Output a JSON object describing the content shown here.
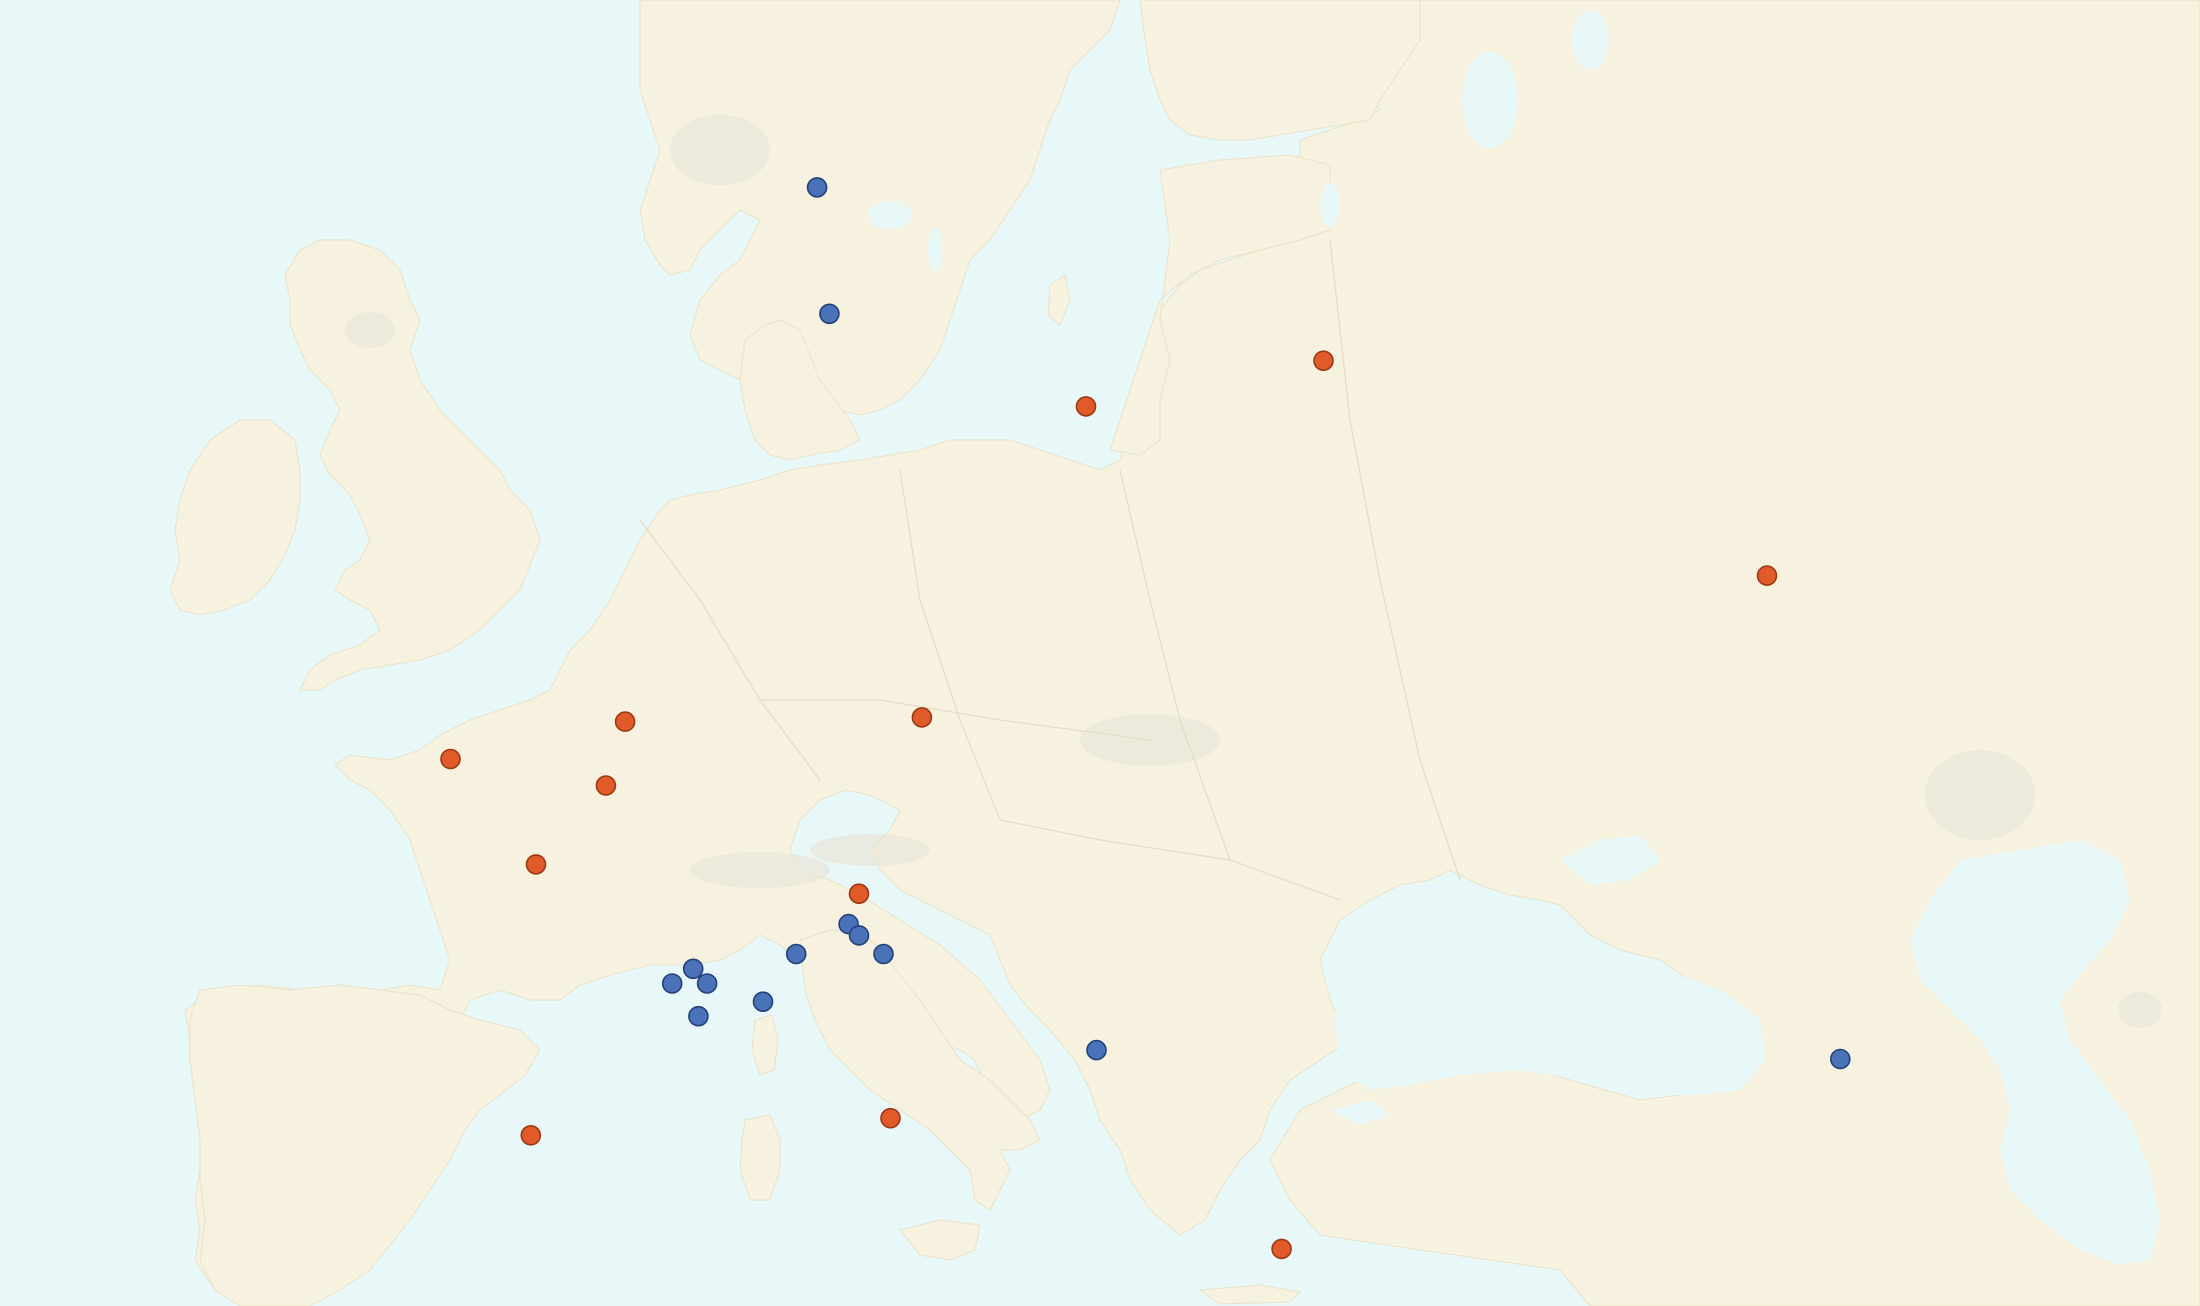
{
  "map": {
    "colors": {
      "water": "#e8f7f7",
      "land": "#f6f2df",
      "orange": "#e15a2a",
      "blue": "#4a72b8"
    },
    "markers": [
      {
        "name": "marker-orange-1",
        "color": "orange",
        "lon": -0.1,
        "lat": 51.5
      },
      {
        "name": "marker-orange-2",
        "color": "orange",
        "lon": 4.9,
        "lat": 52.4
      },
      {
        "name": "marker-orange-3",
        "color": "orange",
        "lon": 4.35,
        "lat": 50.85
      },
      {
        "name": "marker-orange-4",
        "color": "orange",
        "lon": 2.35,
        "lat": 48.86
      },
      {
        "name": "marker-orange-5",
        "color": "orange",
        "lon": 13.4,
        "lat": 52.5
      },
      {
        "name": "marker-orange-6",
        "color": "orange",
        "lon": 11.6,
        "lat": 48.1
      },
      {
        "name": "marker-orange-7",
        "color": "orange",
        "lon": 18.1,
        "lat": 59.3
      },
      {
        "name": "marker-orange-8",
        "color": "orange",
        "lon": 24.9,
        "lat": 60.2
      },
      {
        "name": "marker-orange-9",
        "color": "orange",
        "lon": 37.6,
        "lat": 55.75
      },
      {
        "name": "marker-orange-10",
        "color": "orange",
        "lon": 2.2,
        "lat": 41.4
      },
      {
        "name": "marker-orange-11",
        "color": "orange",
        "lon": 12.5,
        "lat": 41.9
      },
      {
        "name": "marker-orange-12",
        "color": "orange",
        "lon": 23.7,
        "lat": 37.98
      },
      {
        "name": "marker-blue-1",
        "color": "blue",
        "lon": 10.4,
        "lat": 63.4
      },
      {
        "name": "marker-blue-2",
        "color": "blue",
        "lon": 10.75,
        "lat": 61.1
      },
      {
        "name": "marker-blue-3",
        "color": "blue",
        "lon": 11.3,
        "lat": 47.3
      },
      {
        "name": "marker-blue-4",
        "color": "blue",
        "lon": 11.6,
        "lat": 47.0
      },
      {
        "name": "marker-blue-5",
        "color": "blue",
        "lon": 9.8,
        "lat": 46.5
      },
      {
        "name": "marker-blue-6",
        "color": "blue",
        "lon": 12.3,
        "lat": 46.5
      },
      {
        "name": "marker-blue-7",
        "color": "blue",
        "lon": 6.85,
        "lat": 46.1
      },
      {
        "name": "marker-blue-8",
        "color": "blue",
        "lon": 7.25,
        "lat": 45.7
      },
      {
        "name": "marker-blue-9",
        "color": "blue",
        "lon": 6.25,
        "lat": 45.7
      },
      {
        "name": "marker-blue-10",
        "color": "blue",
        "lon": 7.0,
        "lat": 44.8
      },
      {
        "name": "marker-blue-11",
        "color": "blue",
        "lon": 8.85,
        "lat": 45.2
      },
      {
        "name": "marker-blue-12",
        "color": "blue",
        "lon": 18.4,
        "lat": 43.85
      },
      {
        "name": "marker-blue-13",
        "color": "blue",
        "lon": 39.7,
        "lat": 43.6
      }
    ]
  }
}
